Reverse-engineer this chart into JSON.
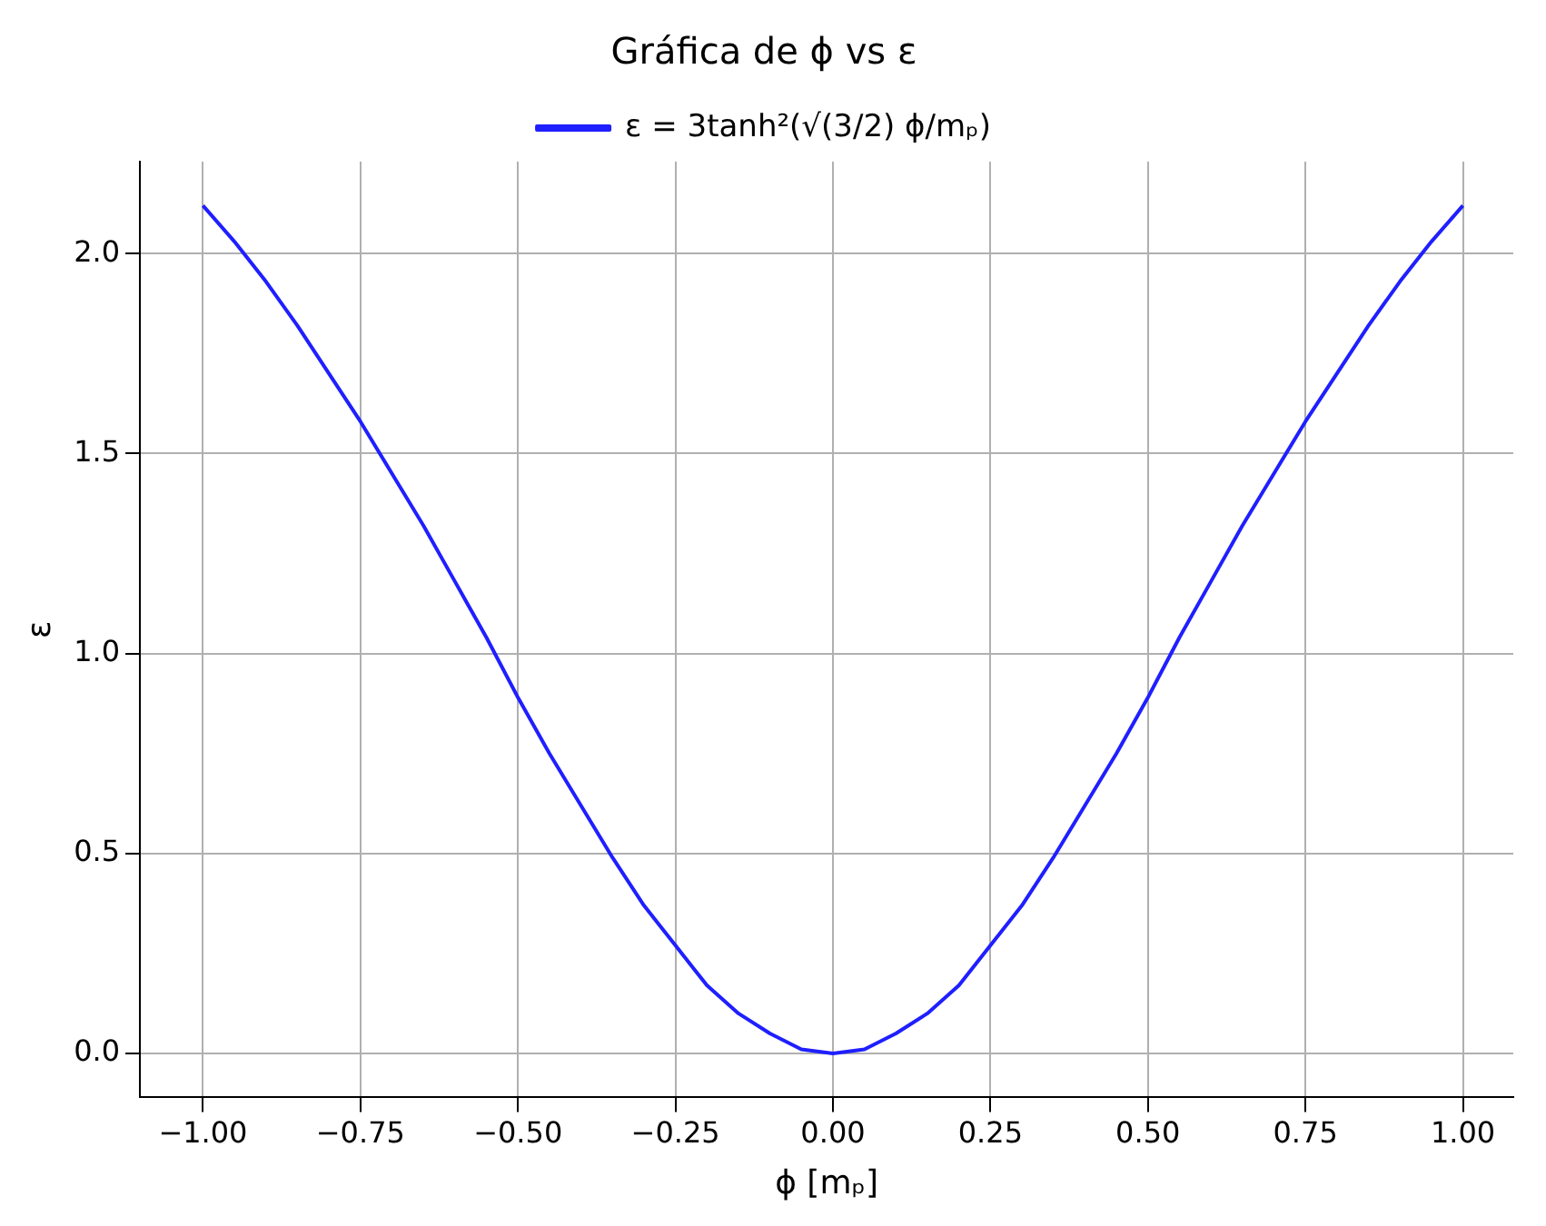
{
  "chart_data": {
    "type": "line",
    "title": "Gráfica de ϕ vs ε",
    "xlabel": "ϕ [mₚ]",
    "ylabel": "ε",
    "x": [
      -1,
      -0.95,
      -0.9,
      -0.85,
      -0.8,
      -0.75,
      -0.7,
      -0.65,
      -0.6,
      -0.55,
      -0.5,
      -0.45,
      -0.4,
      -0.35,
      -0.3,
      -0.25,
      -0.2,
      -0.15,
      -0.1,
      -0.05,
      0,
      0.05,
      0.1,
      0.15,
      0.2,
      0.25,
      0.3,
      0.35,
      0.4,
      0.45,
      0.5,
      0.55,
      0.6,
      0.65,
      0.7,
      0.75,
      0.8,
      0.85,
      0.9,
      0.95,
      1
    ],
    "series": [
      {
        "name": "ε = 3tanh²(√(3/2) ϕ/mₚ)",
        "color": "#1f1fff",
        "values": [
          2.12,
          2.03,
          1.93,
          1.82,
          1.7,
          1.58,
          1.45,
          1.32,
          1.18,
          1.04,
          0.89,
          0.75,
          0.62,
          0.49,
          0.37,
          0.27,
          0.17,
          0.1,
          0.05,
          0.01,
          0,
          0.01,
          0.05,
          0.1,
          0.17,
          0.27,
          0.37,
          0.49,
          0.62,
          0.75,
          0.89,
          1.04,
          1.18,
          1.32,
          1.45,
          1.58,
          1.7,
          1.82,
          1.93,
          2.03,
          2.12
        ]
      }
    ],
    "xlim": [
      -1.1,
      1.08
    ],
    "ylim": [
      -0.11,
      2.23
    ],
    "xticks": [
      {
        "value": -1,
        "label": "−1.00"
      },
      {
        "value": -0.75,
        "label": "−0.75"
      },
      {
        "value": -0.5,
        "label": "−0.50"
      },
      {
        "value": -0.25,
        "label": "−0.25"
      },
      {
        "value": 0,
        "label": "0.00"
      },
      {
        "value": 0.25,
        "label": "0.25"
      },
      {
        "value": 0.5,
        "label": "0.50"
      },
      {
        "value": 0.75,
        "label": "0.75"
      },
      {
        "value": 1,
        "label": "1.00"
      }
    ],
    "yticks": [
      {
        "value": 0,
        "label": "0.0"
      },
      {
        "value": 0.5,
        "label": "0.5"
      },
      {
        "value": 1,
        "label": "1.0"
      },
      {
        "value": 1.5,
        "label": "1.5"
      },
      {
        "value": 2,
        "label": "2.0"
      }
    ],
    "grid": true,
    "legend": "top",
    "marker": "none",
    "line_style": "solid"
  }
}
